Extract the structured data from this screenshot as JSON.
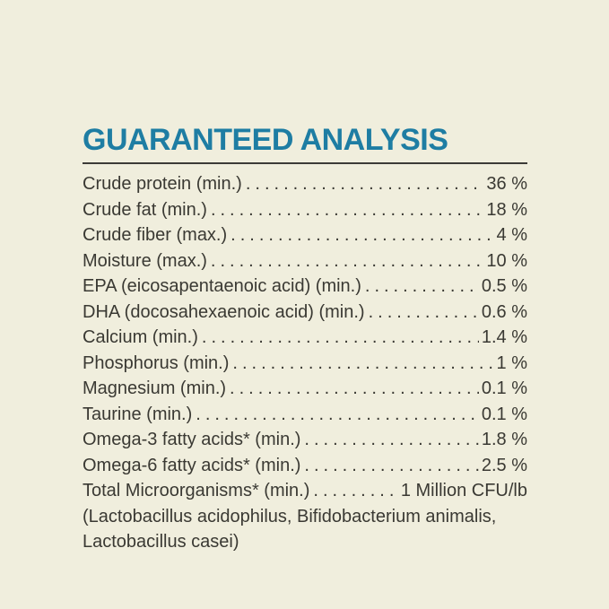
{
  "header": {
    "title": "GUARANTEED ANALYSIS"
  },
  "analysis": {
    "rows": [
      {
        "label": "Crude protein (min.)",
        "value": "36 %"
      },
      {
        "label": "Crude fat (min.)",
        "value": "18 %"
      },
      {
        "label": "Crude fiber (max.)",
        "value": "4 %"
      },
      {
        "label": "Moisture (max.)",
        "value": "10 %"
      },
      {
        "label": "EPA (eicosapentaenoic acid) (min.)",
        "value": "0.5 %"
      },
      {
        "label": "DHA (docosahexaenoic acid) (min.)",
        "value": "0.6 %"
      },
      {
        "label": "Calcium (min.)",
        "value": "1.4 %"
      },
      {
        "label": "Phosphorus (min.)",
        "value": "1 %"
      },
      {
        "label": "Magnesium (min.)",
        "value": "0.1 %"
      },
      {
        "label": "Taurine (min.)",
        "value": "0.1 %"
      },
      {
        "label": "Omega-3 fatty acids* (min.)",
        "value": "1.8 %"
      },
      {
        "label": "Omega-6 fatty acids* (min.)",
        "value": "2.5 %"
      },
      {
        "label": "Total Microorganisms* (min.)",
        "value": "1 Million CFU/lb"
      }
    ],
    "footnote_lines": [
      "(Lactobacillus acidophilus, Bifidobacterium animalis,",
      "Lactobacillus casei)"
    ]
  },
  "colors": {
    "background": "#f0eedd",
    "heading": "#1e7da3",
    "text": "#3a3933",
    "rule": "#3c3b37"
  }
}
